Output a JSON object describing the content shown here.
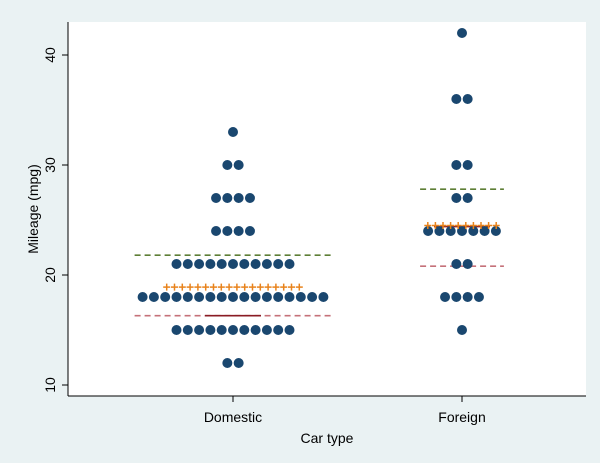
{
  "chart_data": {
    "type": "scatter",
    "subtype": "dot-plot",
    "title": "",
    "xlabel": "Car type",
    "ylabel": "Mileage (mpg)",
    "categories": [
      "Domestic",
      "Foreign"
    ],
    "yticks": [
      10,
      20,
      30,
      40
    ],
    "ylim": [
      9,
      43
    ],
    "grid": false,
    "colors": {
      "background": "#eaf2f3",
      "plot_area": "#ffffff",
      "points": "#1a476f",
      "mean": "#e8831c",
      "median": "#8a1c24",
      "upper_quartile": "#5d7e35",
      "lower_quartile": "#c57179"
    },
    "groups": [
      {
        "category": "Domestic",
        "rows": [
          {
            "y": 12,
            "count": 2
          },
          {
            "y": 15,
            "count": 11
          },
          {
            "y": 18,
            "count": 17
          },
          {
            "y": 21,
            "count": 11
          },
          {
            "y": 24,
            "count": 4
          },
          {
            "y": 27,
            "count": 4
          },
          {
            "y": 30,
            "count": 2
          },
          {
            "y": 33,
            "count": 1
          }
        ],
        "mean": 18.9,
        "median": 16.3,
        "upper_quartile": 21.8,
        "lower_quartile": 16.3
      },
      {
        "category": "Foreign",
        "rows": [
          {
            "y": 15,
            "count": 1
          },
          {
            "y": 18,
            "count": 4
          },
          {
            "y": 21,
            "count": 2
          },
          {
            "y": 24,
            "count": 7
          },
          {
            "y": 27,
            "count": 2
          },
          {
            "y": 30,
            "count": 2
          },
          {
            "y": 36,
            "count": 2
          },
          {
            "y": 42,
            "count": 1
          }
        ],
        "mean": 24.5,
        "median": 24.4,
        "upper_quartile": 27.8,
        "lower_quartile": 20.8
      }
    ]
  }
}
